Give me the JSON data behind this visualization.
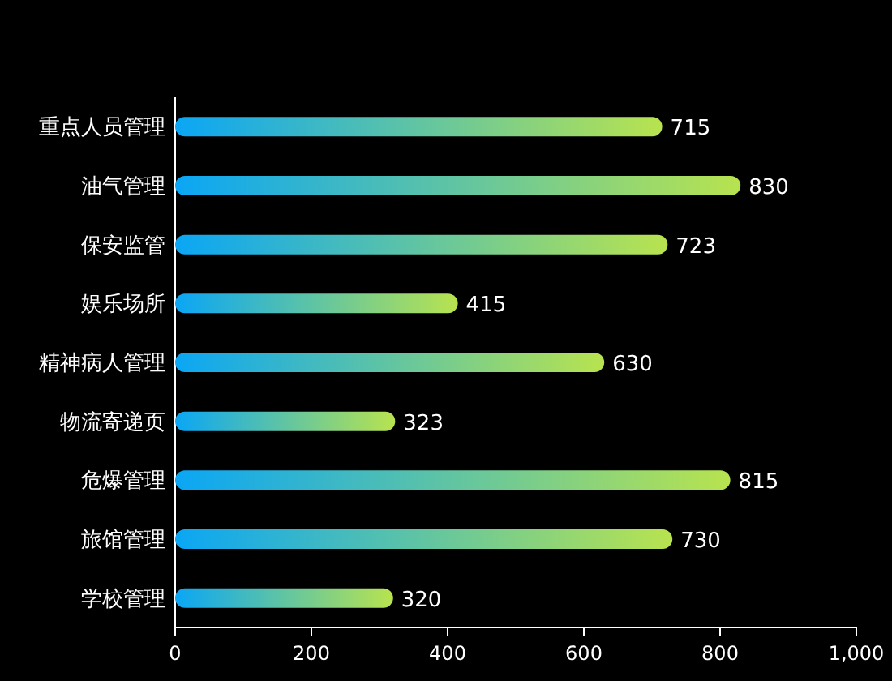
{
  "chart_data": {
    "type": "bar",
    "orientation": "horizontal",
    "categories": [
      "重点人员管理",
      "油气管理",
      "保安监管",
      "娱乐场所",
      "精神病人管理",
      "物流寄递页",
      "危爆管理",
      "旅馆管理",
      "学校管理"
    ],
    "values": [
      715,
      830,
      723,
      415,
      630,
      323,
      815,
      730,
      320
    ],
    "color": "#0aa6f5",
    "xlim": [
      0,
      1000
    ],
    "xticks": [
      0,
      200,
      400,
      600,
      800,
      {
        "value": 1000,
        "label": "1,000"
      }
    ],
    "data_labels": true,
    "grid": false
  }
}
